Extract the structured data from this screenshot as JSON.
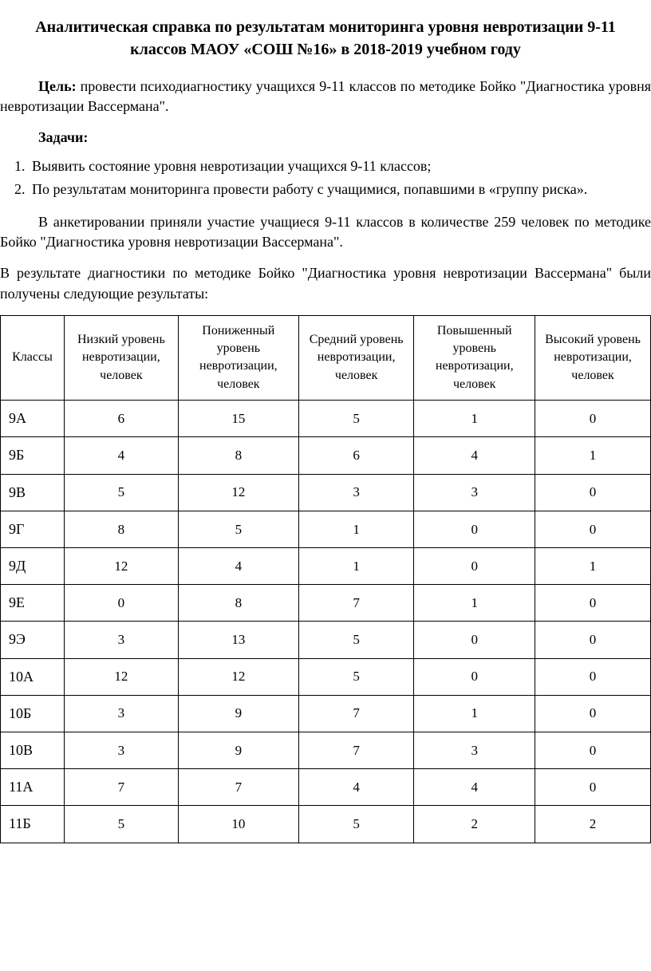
{
  "title": "Аналитическая справка по результатам мониторинга уровня невротизации 9-11 классов МАОУ «СОШ №16» в 2018-2019 учебном году",
  "goal_label": "Цель:",
  "goal_text": " провести психодиагностику  учащихся 9-11 классов по методике  Бойко \"Диагностика уровня невротизации Вассермана\".",
  "tasks_label": "Задачи:",
  "tasks": [
    "Выявить состояние уровня невротизации учащихся 9-11 классов;",
    "По результатам мониторинга провести работу с учащимися, попавшими в «группу риска»."
  ],
  "participation_text": "В анкетировании приняли участие учащиеся 9-11 классов в количестве 259 человек по методике Бойко \"Диагностика уровня невротизации Вассермана\".",
  "results_intro": "В результате диагностики по методике Бойко \"Диагностика уровня невротизации Вассермана\" были получены следующие результаты:",
  "table": {
    "columns": [
      "Классы",
      "Низкий уровень невротизации, человек",
      "Пониженный уровень невротизации, человек",
      "Средний уровень невротизации, человек",
      "Повышенный уровень невротизации, человек",
      "Высокий уровень невротизации, человек"
    ],
    "rows": [
      [
        "9А",
        "6",
        "15",
        "5",
        "1",
        "0"
      ],
      [
        "9Б",
        "4",
        "8",
        "6",
        "4",
        "1"
      ],
      [
        "9В",
        "5",
        "12",
        "3",
        "3",
        "0"
      ],
      [
        "9Г",
        "8",
        "5",
        "1",
        "0",
        "0"
      ],
      [
        "9Д",
        "12",
        "4",
        "1",
        "0",
        "1"
      ],
      [
        "9Е",
        "0",
        "8",
        "7",
        "1",
        "0"
      ],
      [
        "9Э",
        "3",
        "13",
        "5",
        "0",
        "0"
      ],
      [
        "10А",
        "12",
        "12",
        "5",
        "0",
        "0"
      ],
      [
        "10Б",
        "3",
        "9",
        "7",
        "1",
        "0"
      ],
      [
        "10В",
        "3",
        "9",
        "7",
        "3",
        "0"
      ],
      [
        "11А",
        "7",
        "7",
        "4",
        "4",
        "0"
      ],
      [
        "11Б",
        "5",
        "10",
        "5",
        "2",
        "2"
      ]
    ]
  },
  "styling": {
    "font_family": "Times New Roman",
    "base_font_size": 18,
    "title_font_size": 20,
    "text_color": "#000000",
    "background_color": "#ffffff",
    "border_color": "#000000"
  }
}
